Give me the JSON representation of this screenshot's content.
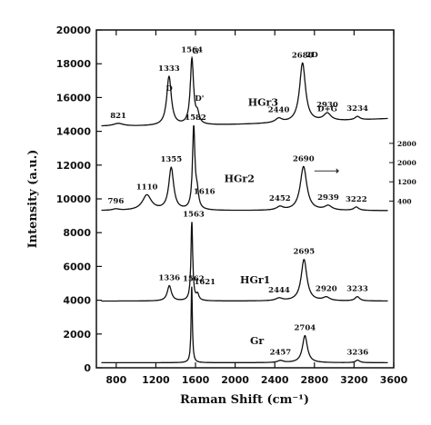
{
  "chart_data": {
    "type": "line",
    "xlabel": "Raman Shift (cm⁻¹)",
    "ylabel": "Intensity (a.u.)",
    "xlim": [
      600,
      3600
    ],
    "ylim": [
      0,
      20000
    ],
    "xticks": [
      800,
      1200,
      1600,
      2000,
      2400,
      2800,
      3200,
      3600
    ],
    "yticks": [
      0,
      2000,
      4000,
      6000,
      8000,
      10000,
      12000,
      14000,
      16000,
      18000,
      20000
    ],
    "grid": false,
    "secondary_axis": {
      "ticks": [
        400,
        1200,
        2000,
        2800
      ],
      "range": [
        0,
        3300
      ],
      "y_at_min": 9300,
      "y_at_max": 14000
    },
    "series": [
      {
        "name": "HGr3",
        "baseline": 14300,
        "drift": 900,
        "label_x": 2130,
        "label_y": 15500,
        "peaks": [
          {
            "x": 821,
            "height": 160,
            "width": 60,
            "label": "821"
          },
          {
            "x": 1333,
            "height": 2900,
            "width": 28,
            "label": "1333"
          },
          {
            "x": 1564,
            "height": 3900,
            "width": 20,
            "label": "1564"
          },
          {
            "x": 1620,
            "height": 550,
            "width": 20
          },
          {
            "x": 2440,
            "height": 250,
            "width": 40,
            "label": "2440"
          },
          {
            "x": 2680,
            "height": 3500,
            "width": 36,
            "label": "2680"
          },
          {
            "x": 2930,
            "height": 450,
            "width": 45,
            "label": "2930"
          },
          {
            "x": 3234,
            "height": 200,
            "width": 30,
            "label": "3234"
          }
        ]
      },
      {
        "name": "HGr2",
        "baseline": 9300,
        "drift": 0,
        "label_x": 1890,
        "label_y": 11000,
        "peaks": [
          {
            "x": 796,
            "height": 80,
            "width": 40,
            "label": "796"
          },
          {
            "x": 1110,
            "height": 900,
            "width": 55,
            "label": "1110"
          },
          {
            "x": 1355,
            "height": 2500,
            "width": 30,
            "label": "1355"
          },
          {
            "x": 1582,
            "height": 4800,
            "width": 15,
            "label": "1582"
          },
          {
            "x": 1616,
            "height": 900,
            "width": 18,
            "label": "1616"
          },
          {
            "x": 2452,
            "height": 200,
            "width": 40,
            "label": "2452"
          },
          {
            "x": 2690,
            "height": 2600,
            "width": 40,
            "label": "2690"
          },
          {
            "x": 2939,
            "height": 260,
            "width": 45,
            "label": "2939"
          },
          {
            "x": 3222,
            "height": 200,
            "width": 30,
            "label": "3222"
          }
        ]
      },
      {
        "name": "HGr1",
        "baseline": 3950,
        "drift": 0,
        "label_x": 2050,
        "label_y": 5000,
        "peaks": [
          {
            "x": 1336,
            "height": 900,
            "width": 25,
            "label": "1336"
          },
          {
            "x": 1563,
            "height": 4650,
            "width": 11,
            "label": "1563"
          },
          {
            "x": 1621,
            "height": 350,
            "width": 16,
            "label": "1621"
          },
          {
            "x": 2444,
            "height": 150,
            "width": 40,
            "label": "2444"
          },
          {
            "x": 2695,
            "height": 2450,
            "width": 35,
            "label": "2695"
          },
          {
            "x": 2920,
            "height": 200,
            "width": 40,
            "label": "2920"
          },
          {
            "x": 3233,
            "height": 250,
            "width": 28,
            "label": "3233"
          }
        ]
      },
      {
        "name": "Gr",
        "baseline": 300,
        "drift": 0,
        "label_x": 2150,
        "label_y": 1400,
        "peaks": [
          {
            "x": 1562,
            "height": 4500,
            "width": 8,
            "label": "1562"
          },
          {
            "x": 2457,
            "height": 120,
            "width": 35,
            "label": "2457"
          },
          {
            "x": 2704,
            "height": 1600,
            "width": 30,
            "label": "2704"
          },
          {
            "x": 3236,
            "height": 150,
            "width": 25,
            "label": "3236"
          }
        ]
      }
    ],
    "annotations": [
      {
        "text": "D",
        "x": 1335,
        "y": 16400
      },
      {
        "text": "G",
        "x": 1600,
        "y": 18600
      },
      {
        "text": "D'",
        "x": 1640,
        "y": 15800
      },
      {
        "text": "2D",
        "x": 2775,
        "y": 18400
      },
      {
        "text": "D+G",
        "x": 2930,
        "y": 15200
      }
    ]
  }
}
